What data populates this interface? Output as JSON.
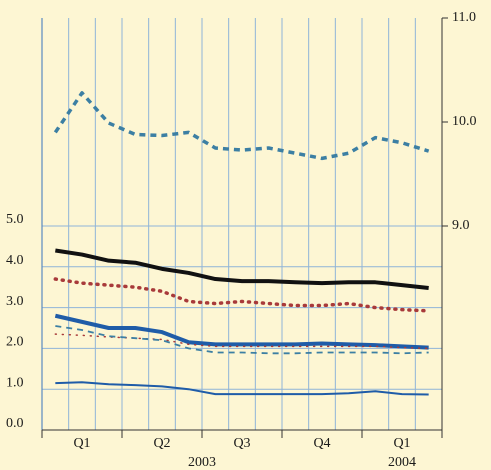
{
  "chart_data": {
    "type": "line",
    "categories": [
      null,
      null,
      null,
      null,
      null,
      null,
      null,
      null,
      null,
      null,
      null,
      null,
      null,
      null,
      null
    ],
    "quarter_labels": [
      "Q1",
      "Q2",
      "Q3",
      "Q4",
      "Q1"
    ],
    "years": [
      "2003",
      "2004"
    ],
    "ylim": [
      0,
      5
    ],
    "yticks": [
      {
        "value": 0,
        "label": "0.0"
      },
      {
        "value": 1,
        "label": "1.0"
      },
      {
        "value": 2,
        "label": "2.0"
      },
      {
        "value": 3,
        "label": "3.0"
      },
      {
        "value": 4,
        "label": "4.0"
      },
      {
        "value": 5,
        "label": "5.0"
      }
    ],
    "y2lim": [
      9,
      11
    ],
    "y2ticks": [
      {
        "value": 9,
        "label": "9.0"
      },
      {
        "value": 10,
        "label": "10.0"
      },
      {
        "value": 11,
        "label": "11.0"
      }
    ],
    "grid": true,
    "series": [
      {
        "color": "#3c7fa3",
        "dash": "dashed",
        "width": 3.5,
        "axis": "y2",
        "values": [
          9.9,
          10.28,
          9.99,
          9.88,
          9.87,
          9.9,
          9.75,
          9.73,
          9.75,
          9.7,
          9.65,
          9.7,
          9.85,
          9.8,
          9.72
        ]
      },
      {
        "color": "#111111",
        "dash": "solid",
        "width": 4,
        "values": [
          4.4,
          4.3,
          4.15,
          4.1,
          3.95,
          3.85,
          3.7,
          3.65,
          3.65,
          3.62,
          3.6,
          3.62,
          3.62,
          3.55,
          3.48
        ]
      },
      {
        "color": "#a83a3a",
        "dash": "dotted",
        "width": 3.5,
        "values": [
          3.7,
          3.6,
          3.55,
          3.5,
          3.4,
          3.15,
          3.1,
          3.15,
          3.1,
          3.05,
          3.05,
          3.1,
          3.0,
          2.95,
          2.92
        ]
      },
      {
        "color": "#1f5ca8",
        "dash": "solid",
        "width": 4,
        "values": [
          2.8,
          2.65,
          2.5,
          2.5,
          2.4,
          2.15,
          2.1,
          2.1,
          2.1,
          2.1,
          2.12,
          2.1,
          2.08,
          2.05,
          2.02
        ]
      },
      {
        "color": "#a83a3a",
        "dash": "dotted",
        "width": 1.5,
        "values": [
          2.35,
          2.32,
          2.28,
          2.25,
          2.22,
          2.1,
          2.05,
          2.05,
          2.05,
          2.05,
          2.05,
          2.05,
          2.05,
          2.02,
          2.0
        ]
      },
      {
        "color": "#3c7fa3",
        "dash": "dashed",
        "width": 1.8,
        "values": [
          2.55,
          2.45,
          2.3,
          2.25,
          2.2,
          2.0,
          1.9,
          1.9,
          1.88,
          1.88,
          1.9,
          1.9,
          1.9,
          1.88,
          1.9
        ]
      },
      {
        "color": "#1f5ca8",
        "dash": "solid",
        "width": 2,
        "values": [
          1.15,
          1.17,
          1.12,
          1.1,
          1.07,
          1.0,
          0.88,
          0.88,
          0.88,
          0.88,
          0.88,
          0.9,
          0.95,
          0.88,
          0.87
        ]
      }
    ]
  }
}
